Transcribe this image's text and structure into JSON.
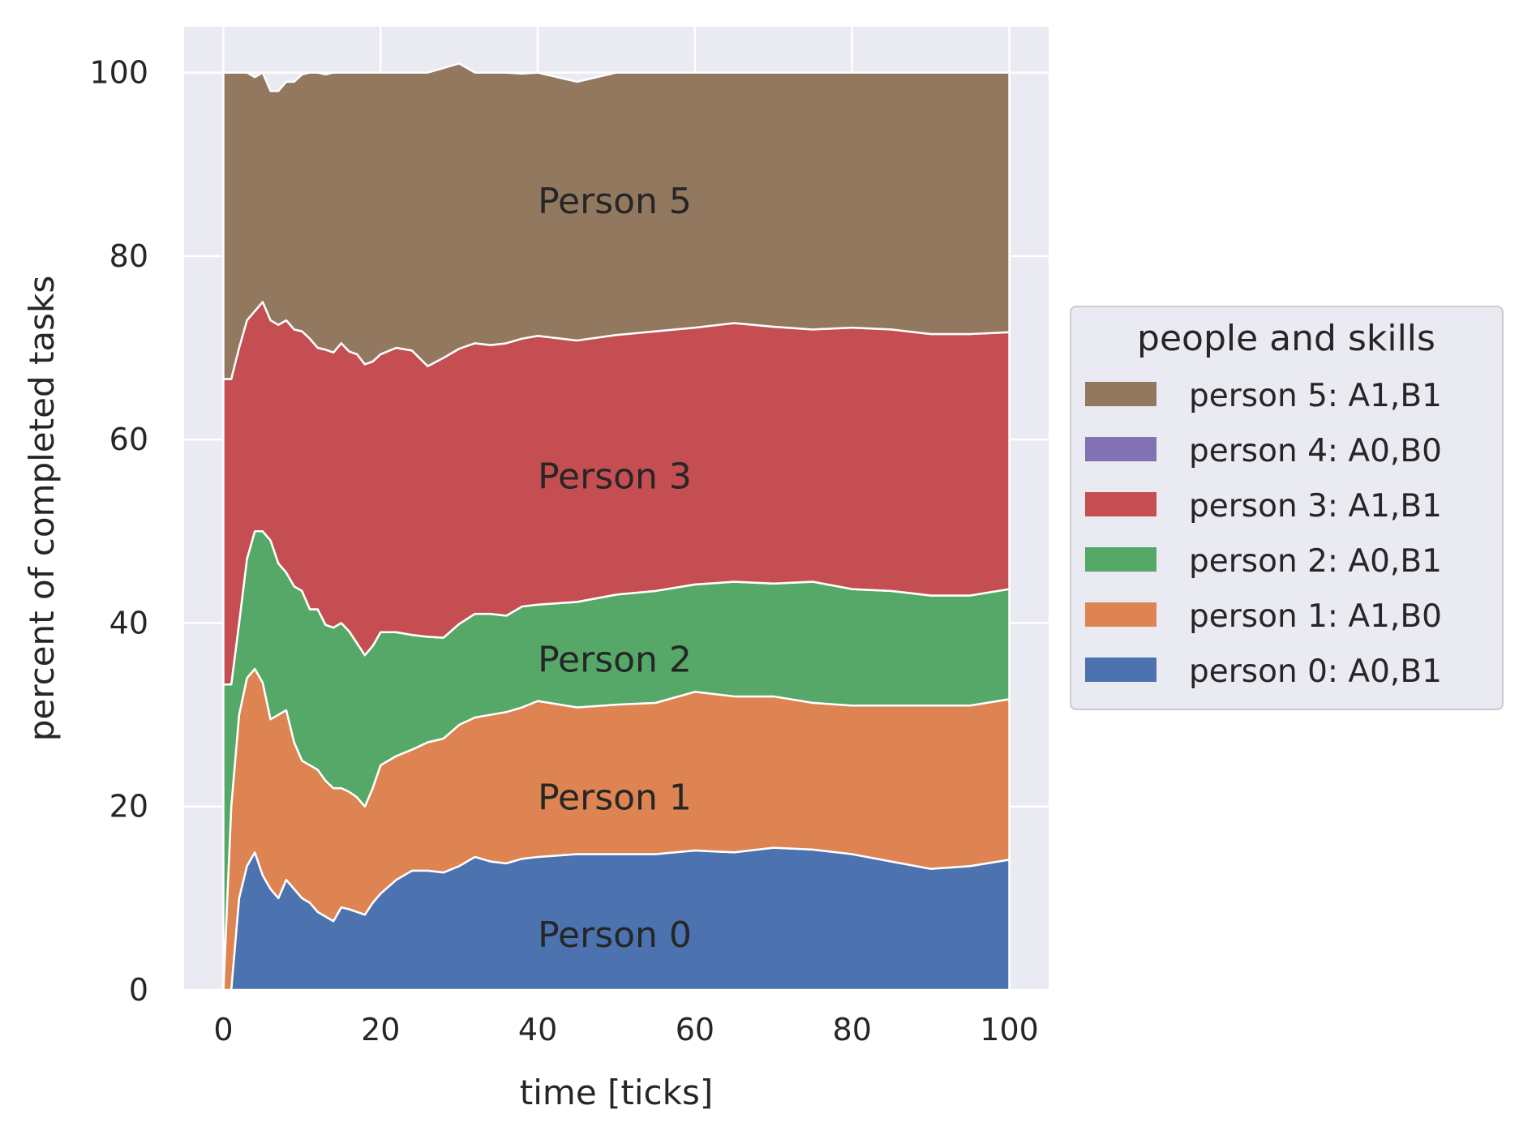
{
  "chart_data": {
    "type": "area",
    "stacked": true,
    "xlabel": "time [ticks]",
    "ylabel": "percent of completed tasks",
    "xlim": [
      -5,
      105
    ],
    "ylim": [
      0,
      105
    ],
    "xticks": [
      0,
      20,
      40,
      60,
      80,
      100
    ],
    "yticks": [
      0,
      20,
      40,
      60,
      80,
      100
    ],
    "grid": true,
    "legend": {
      "title": "people and skills",
      "placement": "right",
      "entries": [
        {
          "label": "person 5: A1,B1",
          "color": "#937860"
        },
        {
          "label": "person 4: A0,B0",
          "color": "#8172b3"
        },
        {
          "label": "person 3: A1,B1",
          "color": "#c44e52"
        },
        {
          "label": "person 2: A0,B1",
          "color": "#55a868"
        },
        {
          "label": "person 1: A1,B0",
          "color": "#dd8452"
        },
        {
          "label": "person 0: A0,B1",
          "color": "#4c72b0"
        }
      ]
    },
    "x": [
      0,
      1,
      2,
      3,
      4,
      5,
      6,
      7,
      8,
      9,
      10,
      11,
      12,
      13,
      14,
      15,
      16,
      17,
      18,
      19,
      20,
      22,
      24,
      26,
      28,
      30,
      32,
      34,
      36,
      38,
      40,
      45,
      50,
      55,
      60,
      65,
      70,
      75,
      80,
      85,
      90,
      95,
      100
    ],
    "series": [
      {
        "color": "#4c72b0",
        "values": [
          0,
          0,
          10,
          13.5,
          15,
          12.5,
          11,
          10,
          12,
          11,
          10,
          9.5,
          8.5,
          8,
          7.5,
          9,
          8.8,
          8.5,
          8.2,
          9.5,
          10.5,
          12,
          13,
          13,
          12.8,
          13.5,
          14.5,
          14,
          13.8,
          14.3,
          14.5,
          14.8,
          14.8,
          14.8,
          15.2,
          15,
          15.5,
          15.3,
          14.8,
          14,
          13.2,
          13.5,
          14.2
        ]
      },
      {
        "color": "#dd8452",
        "values": [
          0,
          20,
          20,
          20.5,
          20,
          21,
          18.5,
          20,
          18.5,
          16,
          15,
          15,
          15.5,
          14.8,
          14.5,
          13,
          12.8,
          12.5,
          11.8,
          12.5,
          14,
          13.5,
          13.2,
          14,
          14.6,
          15.4,
          15.2,
          16,
          16.5,
          16.5,
          17,
          16,
          16.3,
          16.5,
          17.3,
          17,
          16.5,
          16,
          16.2,
          17,
          17.8,
          17.5,
          17.5
        ]
      },
      {
        "color": "#55a868",
        "values": [
          33.3,
          13.3,
          10,
          13,
          15,
          16.5,
          19.5,
          16.5,
          15,
          17,
          18.5,
          17,
          17.5,
          17,
          17.5,
          18,
          17.5,
          16.8,
          16.5,
          15.5,
          14.5,
          13.5,
          12.5,
          11.5,
          11,
          11,
          11.3,
          11,
          10.5,
          11,
          10.5,
          11.5,
          12,
          12.2,
          11.7,
          12.5,
          12.3,
          13.2,
          12.7,
          12.5,
          12,
          12,
          12
        ]
      },
      {
        "color": "#8172b3",
        "values": [
          0,
          0,
          0,
          0,
          0,
          0,
          0,
          0,
          0,
          0,
          0,
          0,
          0,
          0,
          0,
          0,
          0,
          0,
          0,
          0,
          0,
          0,
          0,
          0,
          0,
          0,
          0,
          0,
          0,
          0,
          0,
          0,
          0,
          0,
          0,
          0,
          0,
          0,
          0,
          0,
          0,
          0,
          0
        ]
      },
      {
        "color": "#c44e52",
        "values": [
          33.3,
          33.3,
          30,
          26,
          24,
          25,
          24,
          26,
          27.5,
          28,
          28.3,
          29.5,
          28.5,
          30,
          30,
          30.5,
          30.5,
          31.5,
          31.7,
          31,
          30.3,
          31,
          31,
          29.5,
          30.5,
          30,
          29.5,
          29.3,
          29.7,
          29.2,
          29.3,
          28.5,
          28.3,
          28.3,
          28,
          28.2,
          28,
          27.5,
          28.5,
          28.5,
          28.5,
          28.5,
          28
        ]
      },
      {
        "color": "#937860",
        "values": [
          33.4,
          33.4,
          30,
          27,
          25.5,
          25,
          25,
          25.5,
          26,
          27,
          28,
          29,
          30,
          30,
          30.5,
          29.5,
          30.4,
          30.7,
          31.8,
          31.5,
          30.7,
          30,
          30.3,
          32,
          31.6,
          31.1,
          29.5,
          29.7,
          29.5,
          28.9,
          28.7,
          28.2,
          28.6,
          28.2,
          27.8,
          27.3,
          27.7,
          28,
          27.8,
          28,
          28.5,
          28.5,
          28.3
        ]
      }
    ],
    "annotations": [
      {
        "text": "Person 0",
        "x": 40,
        "y": 6
      },
      {
        "text": "Person 1",
        "x": 40,
        "y": 21
      },
      {
        "text": "Person 2",
        "x": 40,
        "y": 36
      },
      {
        "text": "Person 3",
        "x": 40,
        "y": 56
      },
      {
        "text": "Person 5",
        "x": 40,
        "y": 86
      }
    ]
  }
}
